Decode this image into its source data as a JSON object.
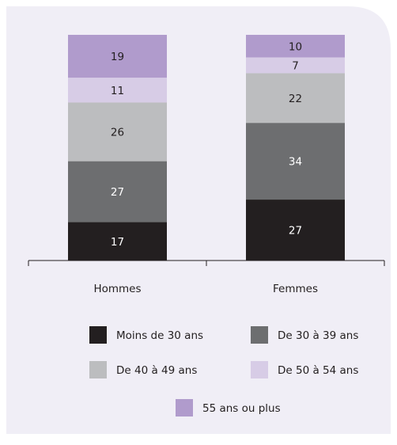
{
  "chart_data": {
    "type": "stacked-bar",
    "categories": [
      "Hommes",
      "Femmes"
    ],
    "series": [
      {
        "name": "Moins de 30 ans",
        "color": "#231f20",
        "values": [
          17,
          27
        ]
      },
      {
        "name": "De 30 à 39 ans",
        "color": "#6d6e70",
        "values": [
          27,
          34
        ]
      },
      {
        "name": "De 40 à 49 ans",
        "color": "#bcbdbf",
        "values": [
          26,
          22
        ]
      },
      {
        "name": "De 50 à 54 ans",
        "color": "#d7cce6",
        "values": [
          11,
          7
        ]
      },
      {
        "name": "55 ans ou plus",
        "color": "#b09bcc",
        "values": [
          19,
          10
        ]
      }
    ],
    "ylim": [
      0,
      100
    ]
  }
}
